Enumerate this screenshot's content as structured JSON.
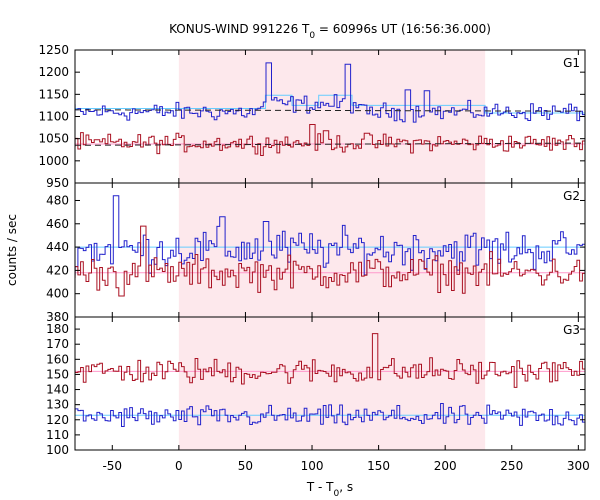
{
  "chart_data": {
    "type": "line",
    "title": "KONUS-WIND 991226 T",
    "title_sub": "0",
    "title_tail": " = 60996s UT (16:56:36.000)",
    "xlabel": "T - T",
    "xlabel_sub": "0",
    "xlabel_tail": ", s",
    "ylabel": "counts / sec",
    "xlim": [
      -78,
      305
    ],
    "x_ticks": [
      -50,
      0,
      50,
      100,
      150,
      200,
      250,
      300
    ],
    "x_tick_labels": [
      "-50",
      "0",
      "50",
      "100",
      "150",
      "200",
      "250",
      "300"
    ],
    "highlight_interval": [
      0,
      230
    ],
    "colors": {
      "blue": "#2222cc",
      "red": "#aa1122",
      "bg_fit_blue": "#66ccff",
      "bg_fit_red": "#ff99cc",
      "dashed": "#222222",
      "highlight": "#fde8ec"
    },
    "panels": [
      {
        "name": "G1",
        "ylim": [
          950,
          1250
        ],
        "y_ticks": [
          950,
          1000,
          1050,
          1100,
          1150,
          1200,
          1250
        ],
        "y_tick_labels": [
          "950",
          "1000",
          "1050",
          "1100",
          "1150",
          "1200",
          "1250"
        ],
        "series": [
          {
            "color": "blue",
            "base": 1110,
            "noise": 14
          },
          {
            "color": "red",
            "base": 1040,
            "noise": 14
          }
        ],
        "blue_fit": [
          [
            -78,
            1118
          ],
          [
            65,
            1118
          ],
          [
            65,
            1148
          ],
          [
            85,
            1148
          ],
          [
            85,
            1125
          ],
          [
            105,
            1125
          ],
          [
            105,
            1148
          ],
          [
            130,
            1148
          ],
          [
            130,
            1125
          ],
          [
            230,
            1125
          ],
          [
            230,
            1108
          ],
          [
            305,
            1108
          ]
        ],
        "red_fit": [
          [
            -78,
            1038
          ],
          [
            305,
            1038
          ]
        ],
        "dashed_blue": [
          [
            -78,
            1115
          ],
          [
            305,
            1112
          ]
        ],
        "dashed_red": [
          [
            -78,
            1035
          ],
          [
            305,
            1040
          ]
        ],
        "spikes_blue": [
          [
            66,
            1203
          ],
          [
            125,
            1200
          ],
          [
            170,
            1160
          ],
          [
            185,
            1158
          ]
        ],
        "spikes_red": [
          [
            100,
            1082
          ],
          [
            110,
            1068
          ],
          [
            140,
            1062
          ]
        ]
      },
      {
        "name": "G2",
        "ylim": [
          380,
          495
        ],
        "y_ticks": [
          380,
          400,
          420,
          440,
          460,
          480
        ],
        "y_tick_labels": [
          "380",
          "400",
          "420",
          "440",
          "460",
          "480"
        ],
        "series": [
          {
            "color": "blue",
            "base": 438,
            "noise": 12
          },
          {
            "color": "red",
            "base": 418,
            "noise": 10
          }
        ],
        "blue_fit": [
          [
            -78,
            440
          ],
          [
            305,
            440
          ]
        ],
        "red_fit": [
          [
            -78,
            418
          ],
          [
            305,
            418
          ]
        ],
        "dashed_blue": [],
        "dashed_red": [],
        "spikes_blue": [
          [
            -48,
            484
          ],
          [
            32,
            466
          ],
          [
            64,
            462
          ]
        ],
        "spikes_red": [
          [
            -28,
            458
          ],
          [
            -45,
            398
          ]
        ]
      },
      {
        "name": "G3",
        "ylim": [
          100,
          188
        ],
        "y_ticks": [
          100,
          110,
          120,
          130,
          140,
          150,
          160,
          170,
          180
        ],
        "y_tick_labels": [
          "100",
          "110",
          "120",
          "130",
          "140",
          "150",
          "160",
          "170",
          "180"
        ],
        "series": [
          {
            "color": "blue",
            "base": 122,
            "noise": 5
          },
          {
            "color": "red",
            "base": 152,
            "noise": 6
          }
        ],
        "blue_fit": [
          [
            -78,
            123
          ],
          [
            305,
            123
          ]
        ],
        "red_fit": [
          [
            -78,
            152
          ],
          [
            305,
            152
          ]
        ],
        "dashed_blue": [],
        "dashed_red": [],
        "spikes_blue": [],
        "spikes_red": [
          [
            147,
            177
          ]
        ]
      }
    ]
  }
}
